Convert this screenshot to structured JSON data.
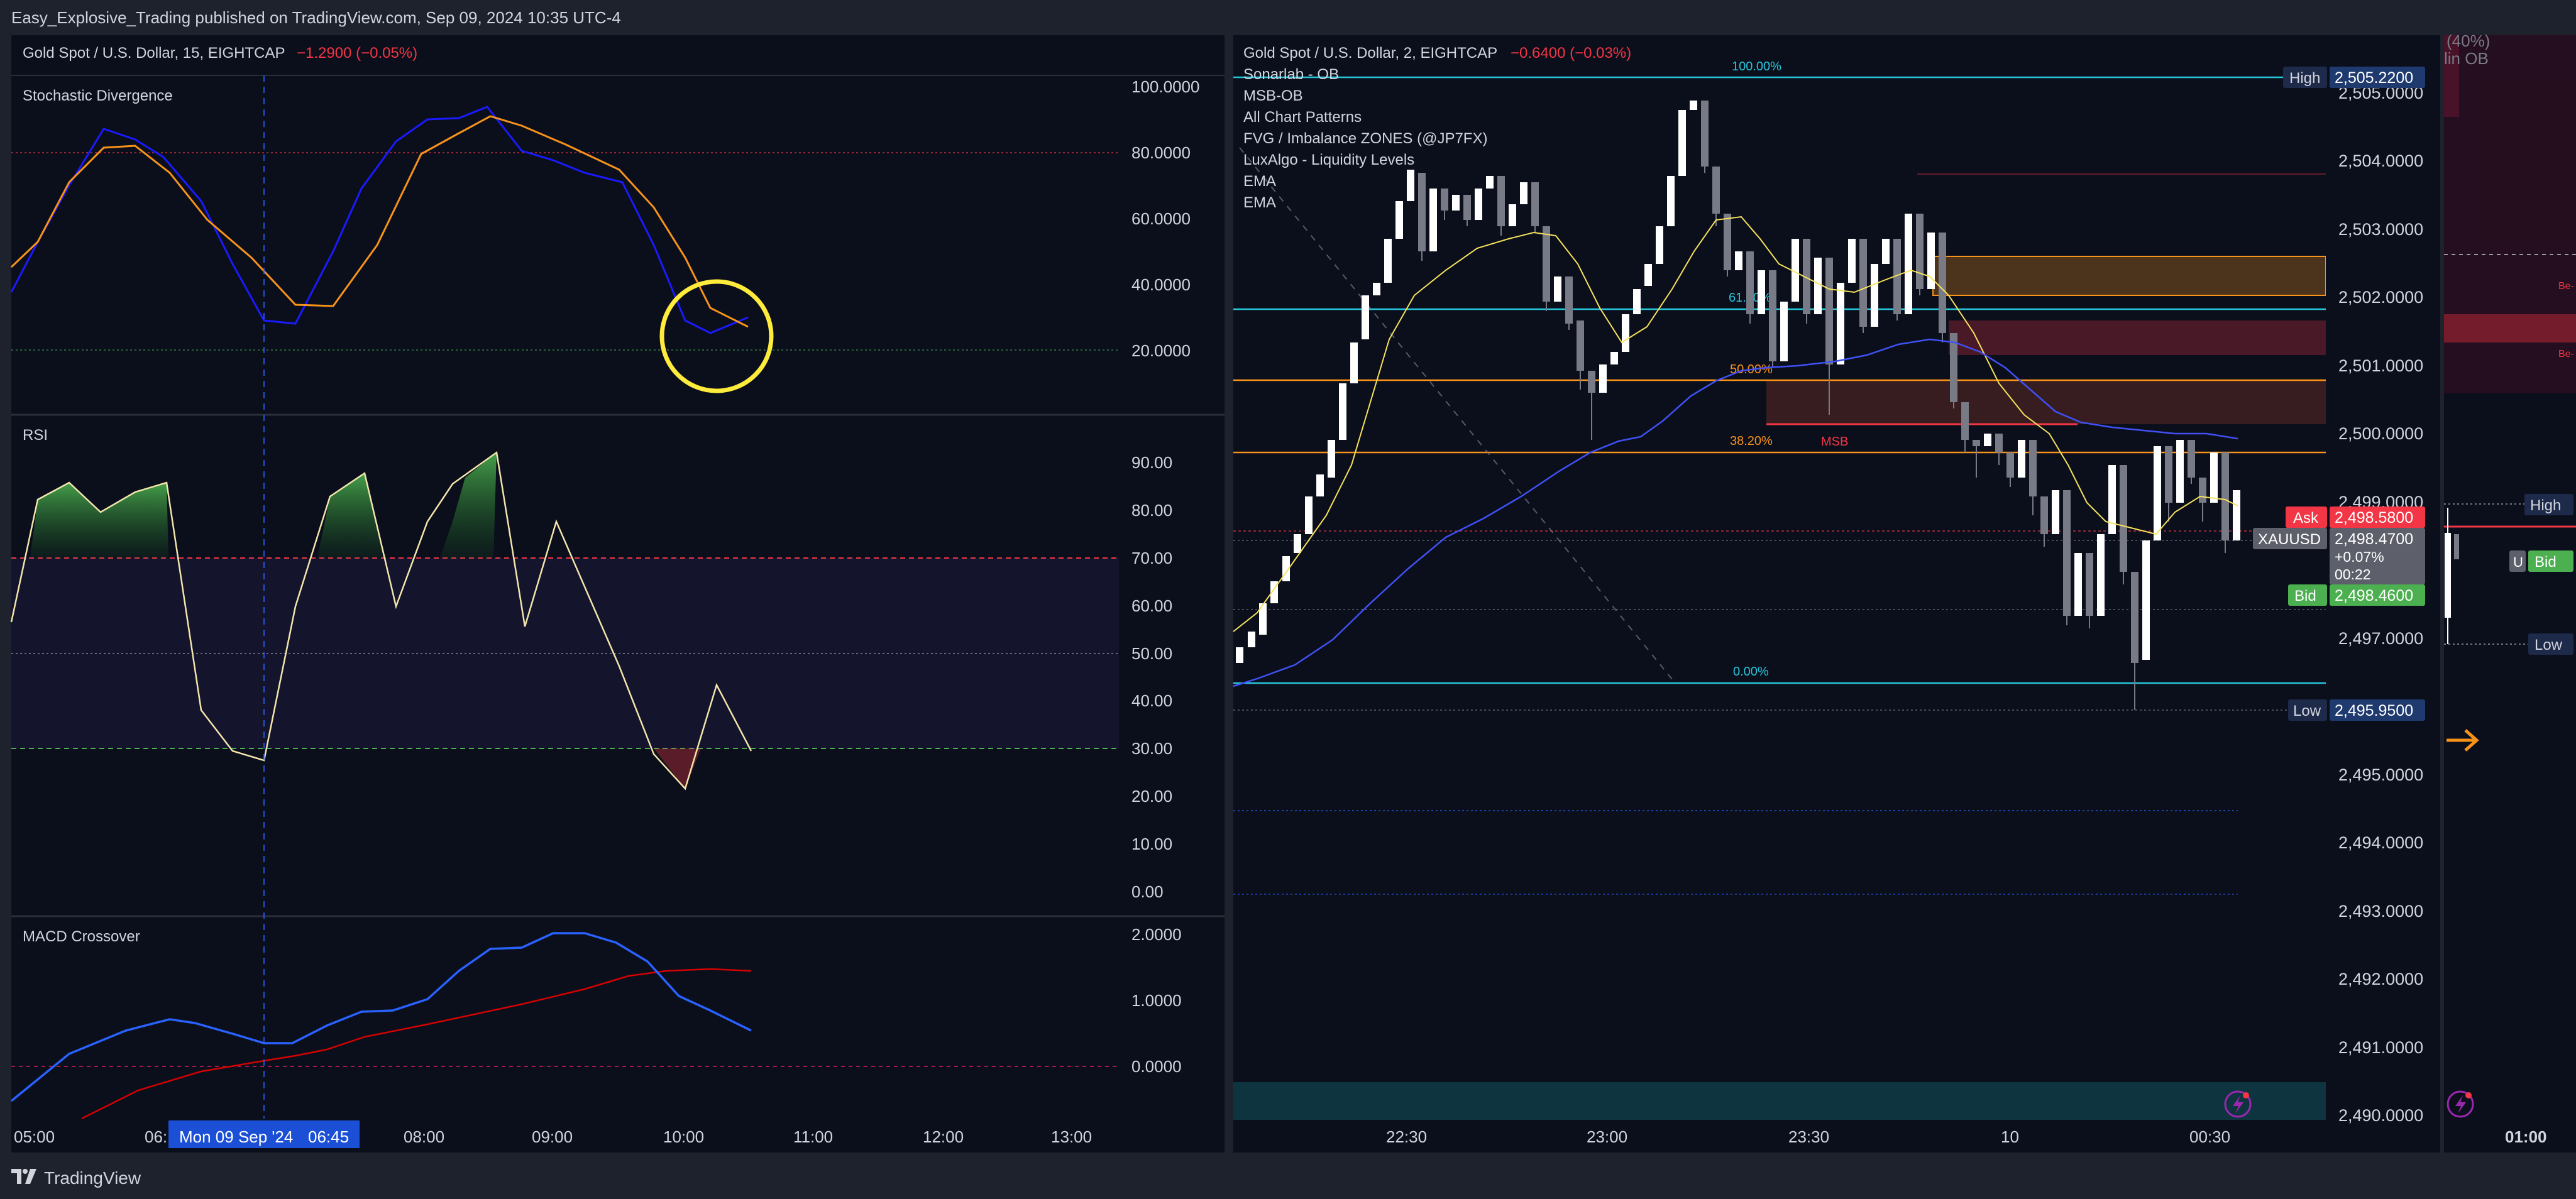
{
  "header": {
    "published_text": "Easy_Explosive_Trading published on TradingView.com, Sep 09, 2024 10:35 UTC-4"
  },
  "footer": {
    "brand": "TradingView"
  },
  "left_chart": {
    "title": "Gold Spot / U.S. Dollar, 15, EIGHTCAP",
    "change": "−1.2900 (−0.05%)",
    "stoch_label": "Stochastic Divergence",
    "stoch_ticks": [
      "100.0000",
      "80.0000",
      "60.0000",
      "40.0000",
      "20.0000"
    ],
    "rsi_label": "RSI",
    "rsi_ticks": [
      "90.00",
      "80.00",
      "70.00",
      "60.00",
      "50.00",
      "40.00",
      "30.00",
      "20.00",
      "10.00",
      "0.00"
    ],
    "macd_label": "MACD Crossover",
    "macd_ticks": [
      "2.0000",
      "1.0000",
      "0.0000"
    ],
    "time_labels": [
      "05:00",
      "06:",
      "08:00",
      "09:00",
      "10:00",
      "11:00",
      "12:00",
      "13:00"
    ],
    "crosshair_label": "Mon 09 Sep '24",
    "crosshair_time": "06:45"
  },
  "right_chart": {
    "title": "Gold Spot / U.S. Dollar, 2, EIGHTCAP",
    "change": "−0.6400 (−0.03%)",
    "indicators": [
      "Sonarlab - OB",
      "MSB-OB",
      "All Chart Patterns",
      "FVG / Imbalance ZONES (@JP7FX)",
      "LuxAlgo - Liquidity Levels",
      "EMA",
      "EMA"
    ],
    "price_ticks": [
      "2,505.0000",
      "2,504.0000",
      "2,503.0000",
      "2,502.0000",
      "2,501.0000",
      "2,500.0000",
      "2,499.0000",
      "2,497.0000",
      "2,495.0000",
      "2,494.0000",
      "2,493.0000",
      "2,492.0000",
      "2,491.0000",
      "2,490.0000"
    ],
    "time_labels": [
      "22:30",
      "23:00",
      "23:30",
      "10",
      "00:30"
    ],
    "fib_labels": [
      "100.00%",
      "61.80%",
      "50.00%",
      "38.20%",
      "0.00%"
    ],
    "msb_label": "MSB",
    "high_tag": {
      "label": "High",
      "value": "2,505.2200"
    },
    "low_tag": {
      "label": "Low",
      "value": "2,495.9500"
    },
    "ask_tag": {
      "label": "Ask",
      "value": "2,498.5800"
    },
    "bid_tag": {
      "label": "Bid",
      "value": "2,498.4600"
    },
    "symbol_tag": {
      "symbol": "XAUUSD",
      "price": "2,498.4700",
      "change": "+0.07%",
      "countdown": "00:22"
    }
  },
  "far_right": {
    "pct_label": "(40%)",
    "ob_label": "lin OB",
    "be_label_1": "Be-",
    "be_label_2": "Be-",
    "high_label": "High",
    "low_label": "Low",
    "u_label": "U",
    "bid_label": "Bid",
    "time_label": "01:00"
  },
  "colors": {
    "bg": "#0b0f1c",
    "frame": "#1e222d",
    "text": "#d1d4dc",
    "orange": "#f7931a",
    "blue": "#2962ff",
    "red": "#f23645",
    "green": "#4caf50",
    "teal": "#26c6da"
  }
}
